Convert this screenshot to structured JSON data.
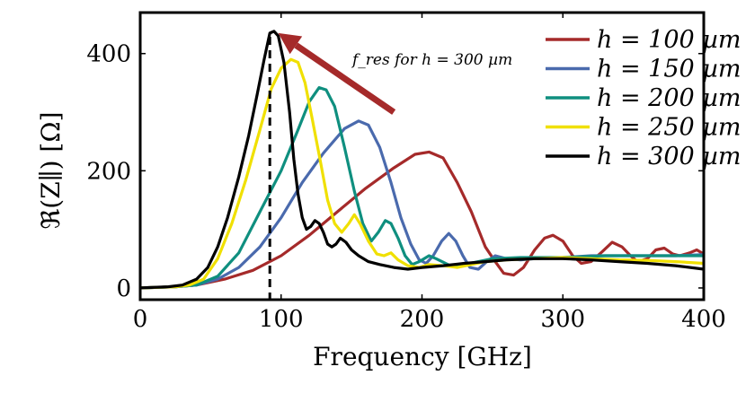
{
  "chart_data": {
    "type": "line",
    "title": "",
    "xlabel": "Frequency [GHz]",
    "ylabel": "ℜ(Z∥) [Ω]",
    "xlim": [
      0,
      400
    ],
    "ylim": [
      -20,
      470
    ],
    "xticks": [
      0,
      100,
      200,
      300,
      400
    ],
    "yticks": [
      0,
      200,
      400
    ],
    "grid": false,
    "legend_position": "top-right",
    "annotation": {
      "text": "f_res for h = 300 µm",
      "marker_x": 92,
      "arrow_tip": [
        98,
        435
      ],
      "arrow_tail": [
        180,
        300
      ]
    },
    "series": [
      {
        "name": "h = 100 µm",
        "color": "#a52a2a",
        "points": [
          [
            0,
            0
          ],
          [
            25,
            2
          ],
          [
            40,
            5
          ],
          [
            60,
            15
          ],
          [
            80,
            30
          ],
          [
            100,
            55
          ],
          [
            120,
            90
          ],
          [
            140,
            130
          ],
          [
            160,
            170
          ],
          [
            180,
            205
          ],
          [
            195,
            228
          ],
          [
            205,
            232
          ],
          [
            215,
            222
          ],
          [
            225,
            180
          ],
          [
            235,
            130
          ],
          [
            245,
            70
          ],
          [
            252,
            45
          ],
          [
            258,
            25
          ],
          [
            265,
            22
          ],
          [
            272,
            35
          ],
          [
            280,
            65
          ],
          [
            287,
            85
          ],
          [
            293,
            90
          ],
          [
            300,
            80
          ],
          [
            307,
            55
          ],
          [
            313,
            42
          ],
          [
            320,
            45
          ],
          [
            328,
            62
          ],
          [
            335,
            78
          ],
          [
            342,
            70
          ],
          [
            348,
            55
          ],
          [
            353,
            45
          ],
          [
            360,
            50
          ],
          [
            366,
            65
          ],
          [
            372,
            68
          ],
          [
            378,
            58
          ],
          [
            383,
            55
          ],
          [
            390,
            60
          ],
          [
            395,
            65
          ],
          [
            400,
            58
          ]
        ]
      },
      {
        "name": "h = 150 µm",
        "color": "#4a6aad",
        "points": [
          [
            0,
            0
          ],
          [
            25,
            2
          ],
          [
            40,
            5
          ],
          [
            55,
            15
          ],
          [
            70,
            35
          ],
          [
            85,
            70
          ],
          [
            100,
            120
          ],
          [
            115,
            180
          ],
          [
            130,
            230
          ],
          [
            145,
            272
          ],
          [
            155,
            285
          ],
          [
            162,
            278
          ],
          [
            170,
            240
          ],
          [
            178,
            180
          ],
          [
            185,
            120
          ],
          [
            192,
            75
          ],
          [
            198,
            48
          ],
          [
            203,
            42
          ],
          [
            208,
            55
          ],
          [
            214,
            80
          ],
          [
            219,
            93
          ],
          [
            224,
            80
          ],
          [
            229,
            55
          ],
          [
            234,
            35
          ],
          [
            240,
            32
          ],
          [
            246,
            45
          ],
          [
            252,
            55
          ],
          [
            260,
            50
          ],
          [
            270,
            48
          ],
          [
            280,
            50
          ],
          [
            300,
            52
          ],
          [
            320,
            55
          ],
          [
            340,
            55
          ],
          [
            360,
            55
          ],
          [
            380,
            55
          ],
          [
            400,
            57
          ]
        ]
      },
      {
        "name": "h = 200 µm",
        "color": "#0f8f7f",
        "points": [
          [
            0,
            0
          ],
          [
            25,
            2
          ],
          [
            40,
            5
          ],
          [
            55,
            20
          ],
          [
            70,
            60
          ],
          [
            85,
            130
          ],
          [
            100,
            200
          ],
          [
            112,
            270
          ],
          [
            120,
            318
          ],
          [
            127,
            342
          ],
          [
            132,
            338
          ],
          [
            138,
            310
          ],
          [
            145,
            240
          ],
          [
            152,
            165
          ],
          [
            158,
            110
          ],
          [
            164,
            80
          ],
          [
            169,
            95
          ],
          [
            174,
            115
          ],
          [
            178,
            110
          ],
          [
            183,
            85
          ],
          [
            188,
            55
          ],
          [
            193,
            40
          ],
          [
            198,
            45
          ],
          [
            205,
            55
          ],
          [
            210,
            50
          ],
          [
            220,
            38
          ],
          [
            230,
            40
          ],
          [
            240,
            45
          ],
          [
            250,
            50
          ],
          [
            270,
            52
          ],
          [
            300,
            52
          ],
          [
            330,
            55
          ],
          [
            360,
            55
          ],
          [
            400,
            55
          ]
        ]
      },
      {
        "name": "h = 250 µm",
        "color": "#f0e000",
        "points": [
          [
            0,
            0
          ],
          [
            25,
            2
          ],
          [
            35,
            5
          ],
          [
            45,
            15
          ],
          [
            55,
            50
          ],
          [
            65,
            110
          ],
          [
            75,
            185
          ],
          [
            85,
            270
          ],
          [
            93,
            340
          ],
          [
            100,
            375
          ],
          [
            107,
            390
          ],
          [
            112,
            385
          ],
          [
            117,
            350
          ],
          [
            122,
            290
          ],
          [
            128,
            215
          ],
          [
            133,
            150
          ],
          [
            138,
            110
          ],
          [
            143,
            95
          ],
          [
            148,
            110
          ],
          [
            152,
            125
          ],
          [
            156,
            110
          ],
          [
            162,
            80
          ],
          [
            168,
            58
          ],
          [
            173,
            55
          ],
          [
            178,
            60
          ],
          [
            183,
            48
          ],
          [
            190,
            38
          ],
          [
            198,
            35
          ],
          [
            205,
            40
          ],
          [
            215,
            38
          ],
          [
            225,
            35
          ],
          [
            235,
            40
          ],
          [
            245,
            45
          ],
          [
            260,
            48
          ],
          [
            280,
            50
          ],
          [
            300,
            52
          ],
          [
            320,
            50
          ],
          [
            340,
            48
          ],
          [
            360,
            47
          ],
          [
            380,
            45
          ],
          [
            400,
            42
          ]
        ]
      },
      {
        "name": "h = 300 µm",
        "color": "#000000",
        "points": [
          [
            0,
            0
          ],
          [
            20,
            2
          ],
          [
            30,
            5
          ],
          [
            40,
            15
          ],
          [
            48,
            35
          ],
          [
            55,
            70
          ],
          [
            62,
            120
          ],
          [
            70,
            190
          ],
          [
            77,
            260
          ],
          [
            83,
            330
          ],
          [
            88,
            390
          ],
          [
            92,
            435
          ],
          [
            95,
            438
          ],
          [
            98,
            430
          ],
          [
            102,
            385
          ],
          [
            106,
            300
          ],
          [
            109,
            220
          ],
          [
            112,
            160
          ],
          [
            115,
            120
          ],
          [
            118,
            100
          ],
          [
            121,
            105
          ],
          [
            124,
            115
          ],
          [
            127,
            110
          ],
          [
            130,
            95
          ],
          [
            133,
            75
          ],
          [
            136,
            70
          ],
          [
            139,
            75
          ],
          [
            142,
            85
          ],
          [
            146,
            78
          ],
          [
            150,
            65
          ],
          [
            155,
            55
          ],
          [
            162,
            45
          ],
          [
            170,
            40
          ],
          [
            180,
            35
          ],
          [
            190,
            32
          ],
          [
            200,
            35
          ],
          [
            215,
            38
          ],
          [
            230,
            42
          ],
          [
            245,
            45
          ],
          [
            260,
            48
          ],
          [
            280,
            50
          ],
          [
            300,
            50
          ],
          [
            320,
            48
          ],
          [
            340,
            45
          ],
          [
            360,
            42
          ],
          [
            380,
            38
          ],
          [
            400,
            32
          ]
        ]
      }
    ]
  }
}
